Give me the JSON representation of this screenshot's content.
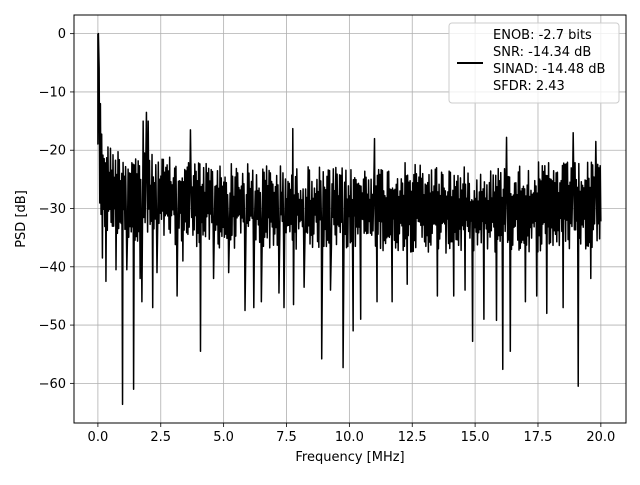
{
  "chart_data": {
    "type": "line",
    "xlabel": "Frequency [MHz]",
    "ylabel": "PSD [dB]",
    "xlim": [
      -0.95,
      21.0
    ],
    "ylim": [
      -66.8,
      3.2
    ],
    "xticks": [
      0.0,
      2.5,
      5.0,
      7.5,
      10.0,
      12.5,
      15.0,
      17.5,
      20.0
    ],
    "xtick_labels": [
      "0.0",
      "2.5",
      "5.0",
      "7.5",
      "10.0",
      "12.5",
      "15.0",
      "17.5",
      "20.0"
    ],
    "yticks": [
      0,
      -10,
      -20,
      -30,
      -40,
      -50,
      -60
    ],
    "ytick_labels": [
      "0",
      "−10",
      "−20",
      "−30",
      "−40",
      "−50",
      "−60"
    ],
    "grid": true,
    "legend_position": "top-right",
    "line_color": "#000000",
    "legend": {
      "lines": [
        "ENOB: -2.7 bits",
        "SNR: -14.34 dB",
        "SINAD: -14.48 dB",
        "SFDR: 2.43"
      ]
    },
    "series": [
      {
        "x_start": 0.0,
        "x_end": 20.0,
        "n_points": 800,
        "peak": {
          "x": 0.0,
          "y": 0.0
        },
        "typical_envelope_upper": [
          [
            0.0,
            -15
          ],
          [
            0.5,
            -19
          ],
          [
            1.5,
            -20
          ],
          [
            2.5,
            -21
          ],
          [
            5.0,
            -22
          ],
          [
            10.0,
            -23
          ],
          [
            12.5,
            -22
          ],
          [
            15.0,
            -23
          ],
          [
            17.5,
            -22
          ],
          [
            20.0,
            -22
          ]
        ],
        "typical_envelope_lower": [
          [
            0.0,
            -35
          ],
          [
            2.5,
            -36
          ],
          [
            5.0,
            -37
          ],
          [
            10.0,
            -37
          ],
          [
            15.0,
            -38
          ],
          [
            20.0,
            -37
          ]
        ],
        "notable_dips": [
          [
            0.18,
            -38.5
          ],
          [
            0.32,
            -42.5
          ],
          [
            0.72,
            -40.5
          ],
          [
            0.98,
            -63.6
          ],
          [
            1.15,
            -40.5
          ],
          [
            1.42,
            -61.0
          ],
          [
            1.68,
            -42.0
          ],
          [
            1.75,
            -46.0
          ],
          [
            2.18,
            -47.0
          ],
          [
            2.35,
            -41.0
          ],
          [
            3.15,
            -45.0
          ],
          [
            3.38,
            -39.0
          ],
          [
            4.08,
            -54.5
          ],
          [
            4.6,
            -42.0
          ],
          [
            5.2,
            -41.0
          ],
          [
            5.85,
            -47.5
          ],
          [
            6.2,
            -47.0
          ],
          [
            6.5,
            -46.0
          ],
          [
            7.2,
            -44.5
          ],
          [
            7.4,
            -47.0
          ],
          [
            7.78,
            -46.5
          ],
          [
            8.2,
            -43.5
          ],
          [
            8.9,
            -55.8
          ],
          [
            9.25,
            -44.0
          ],
          [
            9.75,
            -57.3
          ],
          [
            10.15,
            -51.0
          ],
          [
            10.45,
            -49.0
          ],
          [
            11.1,
            -46.0
          ],
          [
            11.7,
            -46.0
          ],
          [
            12.3,
            -43.0
          ],
          [
            13.5,
            -45.0
          ],
          [
            14.15,
            -45.0
          ],
          [
            14.6,
            -44.0
          ],
          [
            14.9,
            -52.8
          ],
          [
            15.35,
            -49.0
          ],
          [
            15.85,
            -49.2
          ],
          [
            16.1,
            -57.6
          ],
          [
            16.4,
            -54.5
          ],
          [
            17.0,
            -46.0
          ],
          [
            17.45,
            -45.0
          ],
          [
            17.85,
            -48.0
          ],
          [
            18.5,
            -47.0
          ],
          [
            18.9,
            -45.0
          ],
          [
            19.1,
            -60.5
          ],
          [
            19.6,
            -42.0
          ]
        ],
        "notable_peaks": [
          [
            0.02,
            0.0
          ],
          [
            0.05,
            -6.0
          ],
          [
            0.1,
            -12.0
          ],
          [
            1.93,
            -13.5
          ],
          [
            1.8,
            -15.0
          ],
          [
            2.0,
            -15.0
          ],
          [
            3.68,
            -16.5
          ],
          [
            7.75,
            -16.3
          ],
          [
            11.0,
            -18.0
          ],
          [
            16.25,
            -17.8
          ],
          [
            18.9,
            -17.0
          ],
          [
            19.8,
            -18.5
          ]
        ]
      }
    ]
  }
}
